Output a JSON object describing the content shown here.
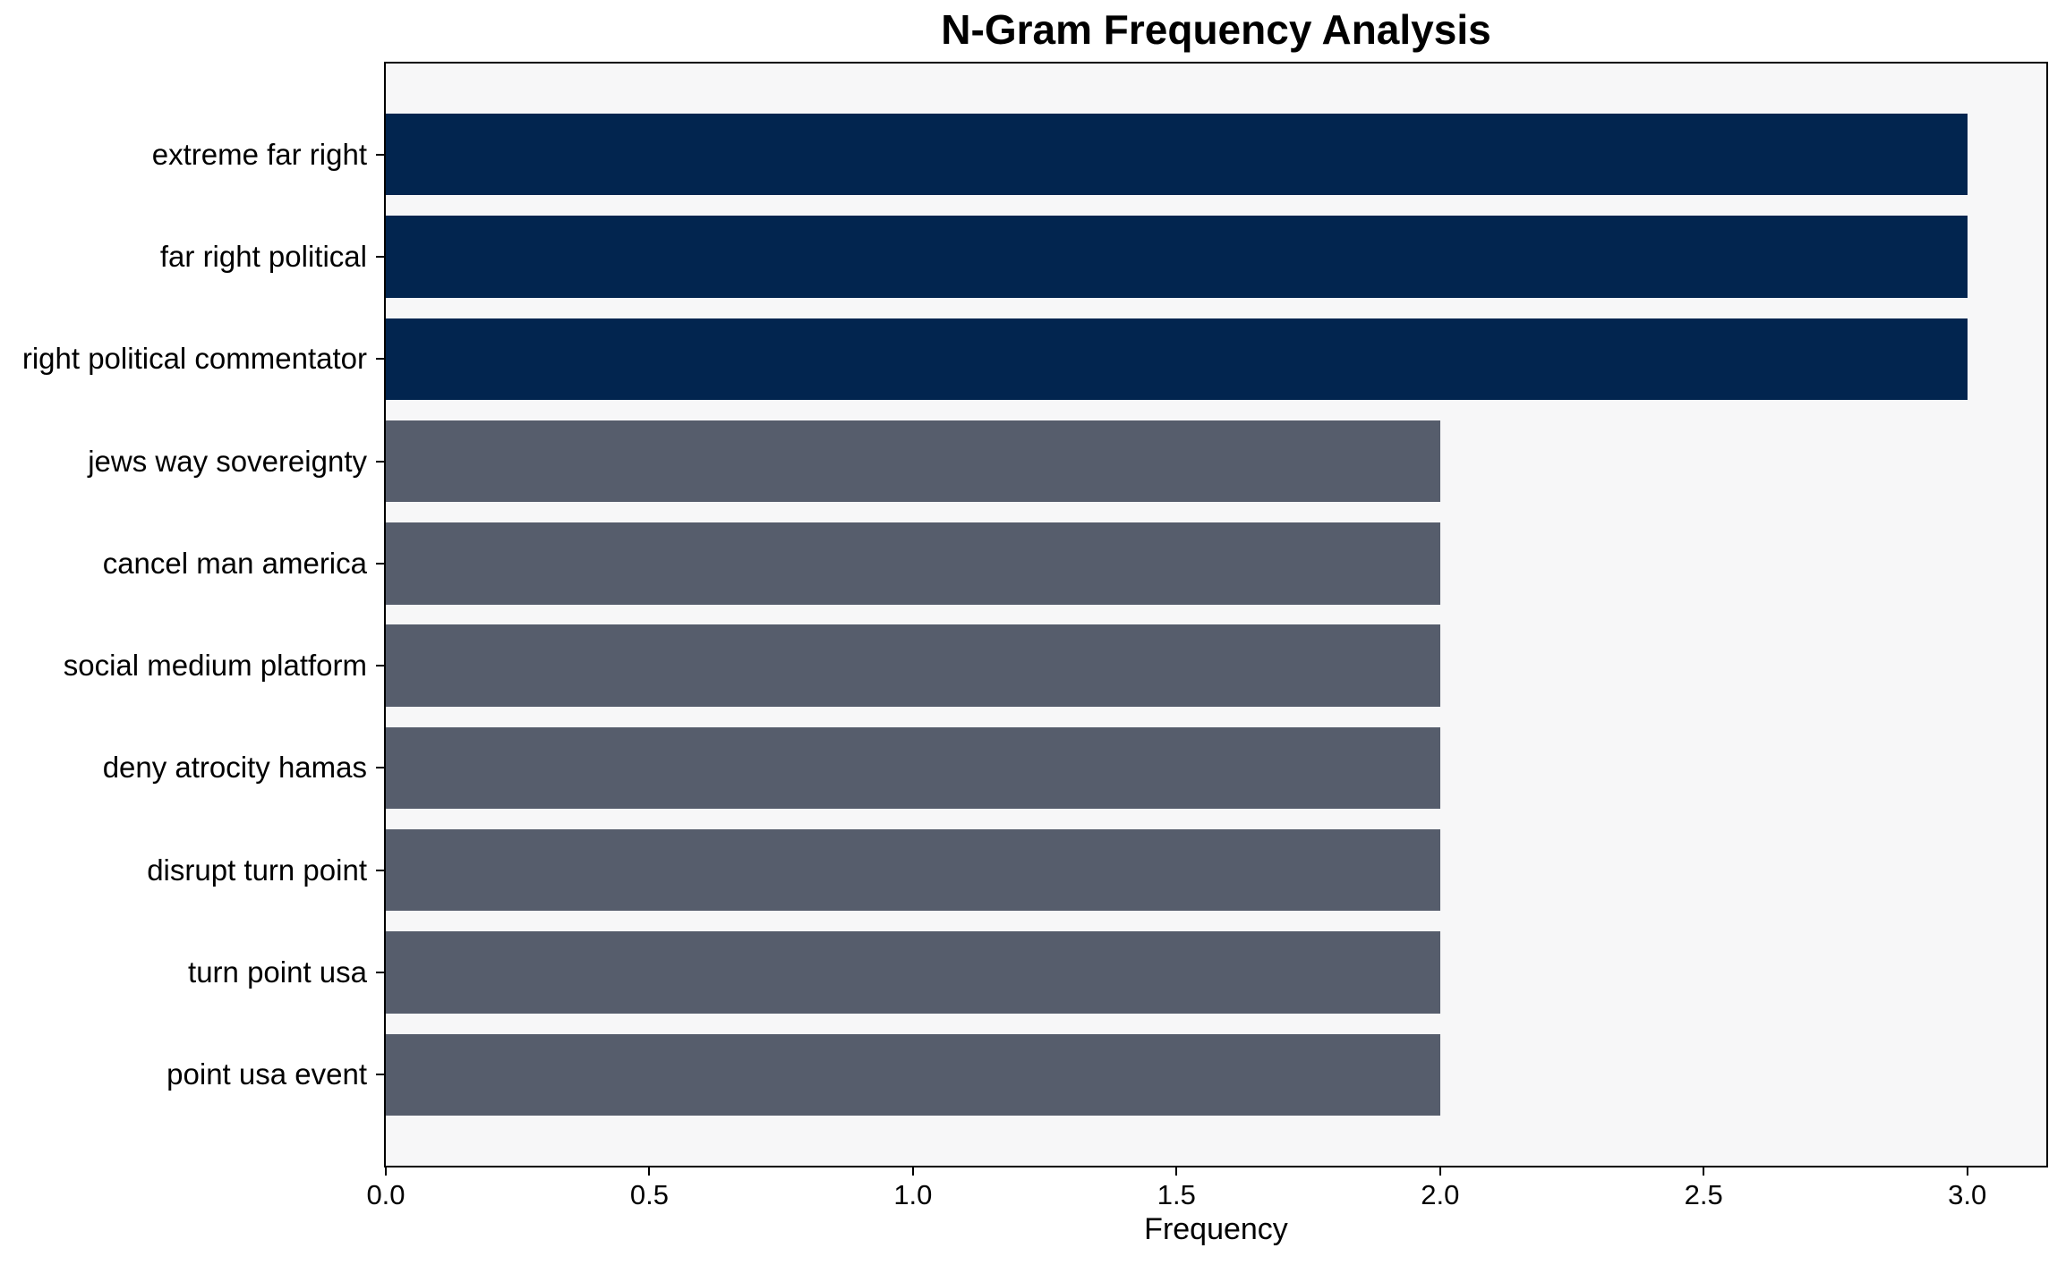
{
  "chart_data": {
    "type": "bar",
    "orientation": "horizontal",
    "title": "N-Gram Frequency Analysis",
    "xlabel": "Frequency",
    "ylabel": "",
    "categories": [
      "extreme far right",
      "far right political",
      "right political commentator",
      "jews way sovereignty",
      "cancel man america",
      "social medium platform",
      "deny atrocity hamas",
      "disrupt turn point",
      "turn point usa",
      "point usa event"
    ],
    "values": [
      3,
      3,
      3,
      2,
      2,
      2,
      2,
      2,
      2,
      2
    ],
    "bar_colors": [
      "#02254f",
      "#02254f",
      "#02254f",
      "#565d6c",
      "#565d6c",
      "#565d6c",
      "#565d6c",
      "#565d6c",
      "#565d6c",
      "#565d6c"
    ],
    "xticks": [
      0,
      0.5,
      1,
      1.5,
      2,
      2.5,
      3
    ],
    "xtick_labels": [
      "0.0",
      "0.5",
      "1.0",
      "1.5",
      "2.0",
      "2.5",
      "3.0"
    ],
    "xlim": [
      0,
      3.15
    ],
    "grid": false,
    "legend": null,
    "colors": {
      "high_freq_bar": "#02254f",
      "low_freq_bar": "#565d6c",
      "plot_background": "#f7f7f8",
      "figure_background": "#ffffff",
      "spine": "#000000",
      "text": "#000000"
    }
  }
}
